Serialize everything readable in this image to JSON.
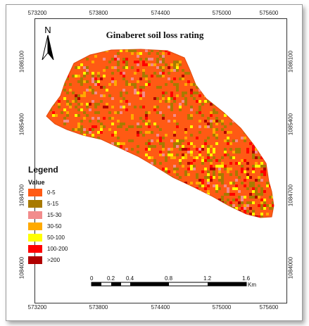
{
  "map": {
    "title": "Ginaberet soil loss rating",
    "north_label": "N",
    "x_ticks": [
      "573200",
      "573800",
      "574400",
      "575000",
      "575600"
    ],
    "y_ticks": [
      "1086100",
      "1085400",
      "1084700",
      "1084000"
    ]
  },
  "legend": {
    "title": "Legend",
    "subtitle": "Value",
    "items": [
      {
        "label": "0-5",
        "color": "#ff5a14"
      },
      {
        "label": "5-15",
        "color": "#a87a00"
      },
      {
        "label": "15-30",
        "color": "#f28c8c"
      },
      {
        "label": "30-50",
        "color": "#ffaa00"
      },
      {
        "label": "50-100",
        "color": "#ffff00"
      },
      {
        "label": "100-200",
        "color": "#ff0000"
      },
      {
        "label": ">200",
        "color": "#b00000"
      }
    ]
  },
  "scale_bar": {
    "labels": [
      "0",
      "0.2",
      "0.4",
      "0.8",
      "1.2",
      "1.6"
    ],
    "unit": "Km"
  }
}
